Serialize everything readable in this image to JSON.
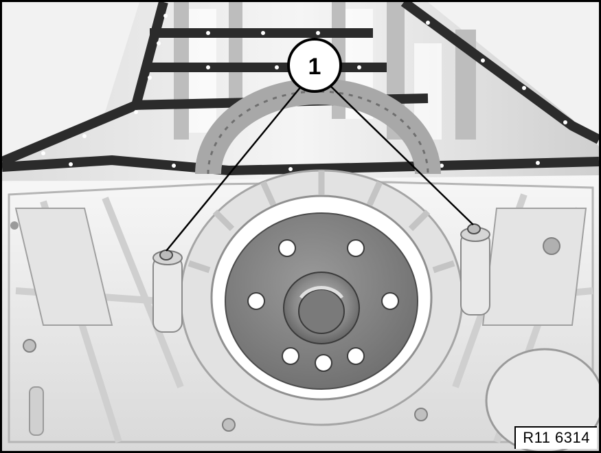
{
  "figure": {
    "reference": "R11 6314",
    "callout": {
      "number": "1"
    }
  },
  "colors": {
    "ink": "#000000",
    "gasket": "#2b2b2b",
    "metal_light": "#ececec",
    "metal_mid": "#c8c8c8",
    "metal_dark": "#8c8c8c",
    "flywheel": "#7d7d7d",
    "hub": "#5a5a5a",
    "sprocket": "#a8a8a8"
  }
}
